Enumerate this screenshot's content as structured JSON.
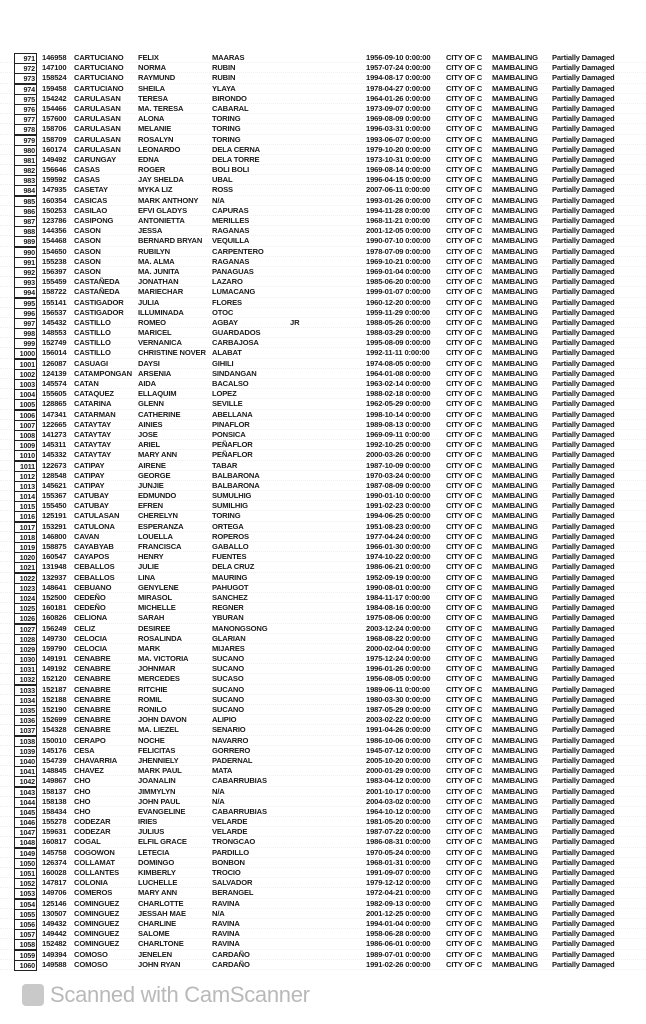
{
  "watermark": {
    "logo": "CS",
    "text": "Scanned with CamScanner"
  },
  "columns_constant_note": "",
  "rows": [
    [
      "971",
      "146958",
      "CARTUCIANO",
      "FELIX",
      "MAARAS",
      "",
      "1956-09-10 0:00:00",
      "CITY OF C",
      "MAMBALING",
      "Partially Damaged"
    ],
    [
      "972",
      "147100",
      "CARTUCIANO",
      "NORMA",
      "RUBIN",
      "",
      "1957-07-24 0:00:00",
      "CITY OF C",
      "MAMBALING",
      "Partially Damaged"
    ],
    [
      "973",
      "158524",
      "CARTUCIANO",
      "RAYMUND",
      "RUBIN",
      "",
      "1994-08-17 0:00:00",
      "CITY OF C",
      "MAMBALING",
      "Partially Damaged"
    ],
    [
      "974",
      "159458",
      "CARTUCIANO",
      "SHEILA",
      "YLAYA",
      "",
      "1978-04-27 0:00:00",
      "CITY OF C",
      "MAMBALING",
      "Partially Damaged"
    ],
    [
      "975",
      "154242",
      "CARULASAN",
      "TERESA",
      "BIRONDO",
      "",
      "1964-01-26 0:00:00",
      "CITY OF C",
      "MAMBALING",
      "Partially Damaged"
    ],
    [
      "976",
      "154466",
      "CARULASAN",
      "MA. TERESA",
      "CABARAL",
      "",
      "1973-09-07 0:00:00",
      "CITY OF C",
      "MAMBALING",
      "Partially Damaged"
    ],
    [
      "977",
      "157600",
      "CARULASAN",
      "ALONA",
      "TORING",
      "",
      "1969-08-09 0:00:00",
      "CITY OF C",
      "MAMBALING",
      "Partially Damaged"
    ],
    [
      "978",
      "158706",
      "CARULASAN",
      "MELANIE",
      "TORING",
      "",
      "1996-03-31 0:00:00",
      "CITY OF C",
      "MAMBALING",
      "Partially Damaged"
    ],
    [
      "979",
      "158709",
      "CARULASAN",
      "ROSALYN",
      "TORING",
      "",
      "1993-06-07 0:00:00",
      "CITY OF C",
      "MAMBALING",
      "Partially Damaged"
    ],
    [
      "980",
      "160174",
      "CARULASAN",
      "LEONARDO",
      "DELA CERNA",
      "",
      "1979-10-20 0:00:00",
      "CITY OF C",
      "MAMBALING",
      "Partially Damaged"
    ],
    [
      "981",
      "149492",
      "CARUNGAY",
      "EDNA",
      "DELA TORRE",
      "",
      "1973-10-31 0:00:00",
      "CITY OF C",
      "MAMBALING",
      "Partially Damaged"
    ],
    [
      "982",
      "156646",
      "CASAS",
      "ROGER",
      "BOLI BOLI",
      "",
      "1969-08-14 0:00:00",
      "CITY OF C",
      "MAMBALING",
      "Partially Damaged"
    ],
    [
      "983",
      "159592",
      "CASAS",
      "JAY SHELDA",
      "UBAL",
      "",
      "1996-04-15 0:00:00",
      "CITY OF C",
      "MAMBALING",
      "Partially Damaged"
    ],
    [
      "984",
      "147935",
      "CASETAY",
      "MYKA LIZ",
      "ROSS",
      "",
      "2007-06-11 0:00:00",
      "CITY OF C",
      "MAMBALING",
      "Partially Damaged"
    ],
    [
      "985",
      "160354",
      "CASICAS",
      "MARK ANTHONY",
      "N/A",
      "",
      "1993-01-26 0:00:00",
      "CITY OF C",
      "MAMBALING",
      "Partially Damaged"
    ],
    [
      "986",
      "150253",
      "CASILAO",
      "EFVI GLADYS",
      "CAPURAS",
      "",
      "1994-11-28 0:00:00",
      "CITY OF C",
      "MAMBALING",
      "Partially Damaged"
    ],
    [
      "987",
      "123786",
      "CASIPONG",
      "ANTONIETTA",
      "MERILLES",
      "",
      "1968-11-21 0:00:00",
      "CITY OF C",
      "MAMBALING",
      "Partially Damaged"
    ],
    [
      "988",
      "144356",
      "CASON",
      "JESSA",
      "RAGANAS",
      "",
      "2001-12-05 0:00:00",
      "CITY OF C",
      "MAMBALING",
      "Partially Damaged"
    ],
    [
      "989",
      "154468",
      "CASON",
      "BERNARD BRYAN",
      "VEQUILLA",
      "",
      "1990-07-10 0:00:00",
      "CITY OF C",
      "MAMBALING",
      "Partially Damaged"
    ],
    [
      "990",
      "154650",
      "CASON",
      "RUBILYN",
      "CARPENTERO",
      "",
      "1978-07-09 0:00:00",
      "CITY OF C",
      "MAMBALING",
      "Partially Damaged"
    ],
    [
      "991",
      "155238",
      "CASON",
      "MA. ALMA",
      "RAGANAS",
      "",
      "1969-10-21 0:00:00",
      "CITY OF C",
      "MAMBALING",
      "Partially Damaged"
    ],
    [
      "992",
      "156397",
      "CASON",
      "MA. JUNITA",
      "PANAGUAS",
      "",
      "1969-01-04 0:00:00",
      "CITY OF C",
      "MAMBALING",
      "Partially Damaged"
    ],
    [
      "993",
      "155459",
      "CASTAÑEDA",
      "JONATHAN",
      "LAZARO",
      "",
      "1985-06-20 0:00:00",
      "CITY OF C",
      "MAMBALING",
      "Partially Damaged"
    ],
    [
      "994",
      "158722",
      "CASTAÑEDA",
      "MARIECHAR",
      "LUMACANG",
      "",
      "1999-01-07 0:00:00",
      "CITY OF C",
      "MAMBALING",
      "Partially Damaged"
    ],
    [
      "995",
      "155141",
      "CASTIGADOR",
      "JULIA",
      "FLORES",
      "",
      "1960-12-20 0:00:00",
      "CITY OF C",
      "MAMBALING",
      "Partially Damaged"
    ],
    [
      "996",
      "156537",
      "CASTIGADOR",
      "ILLUMINADA",
      "OTOC",
      "",
      "1959-11-29 0:00:00",
      "CITY OF C",
      "MAMBALING",
      "Partially Damaged"
    ],
    [
      "997",
      "145432",
      "CASTILLO",
      "ROMEO",
      "AGBAY",
      "JR",
      "1988-05-26 0:00:00",
      "CITY OF C",
      "MAMBALING",
      "Partially Damaged"
    ],
    [
      "998",
      "148553",
      "CASTILLO",
      "MARICEL",
      "GUARDADOS",
      "",
      "1988-03-29 0:00:00",
      "CITY OF C",
      "MAMBALING",
      "Partially Damaged"
    ],
    [
      "999",
      "152749",
      "CASTILLO",
      "VERNANICA",
      "CARBAJOSA",
      "",
      "1995-08-09 0:00:00",
      "CITY OF C",
      "MAMBALING",
      "Partially Damaged"
    ],
    [
      "1000",
      "156014",
      "CASTILLO",
      "CHRISTINE NOVER",
      "ALABAT",
      "",
      "1992-11-11 0:00:00",
      "CITY OF C",
      "MAMBALING",
      "Partially Damaged"
    ],
    [
      "1001",
      "126087",
      "CASUAGI",
      "DAYSI",
      "GIHILI",
      "",
      "1974-08-05 0:00:00",
      "CITY OF C",
      "MAMBALING",
      "Partially Damaged"
    ],
    [
      "1002",
      "124139",
      "CATAMPONGAN",
      "ARSENIA",
      "SINDANGAN",
      "",
      "1964-01-08 0:00:00",
      "CITY OF C",
      "MAMBALING",
      "Partially Damaged"
    ],
    [
      "1003",
      "145574",
      "CATAN",
      "AIDA",
      "BACALSO",
      "",
      "1963-02-14 0:00:00",
      "CITY OF C",
      "MAMBALING",
      "Partially Damaged"
    ],
    [
      "1004",
      "155605",
      "CATAQUEZ",
      "ELLAQUIM",
      "LOPEZ",
      "",
      "1988-02-18 0:00:00",
      "CITY OF C",
      "MAMBALING",
      "Partially Damaged"
    ],
    [
      "1005",
      "128865",
      "CATARINA",
      "GLENN",
      "SEVILLE",
      "",
      "1962-05-29 0:00:00",
      "CITY OF C",
      "MAMBALING",
      "Partially Damaged"
    ],
    [
      "1006",
      "147341",
      "CATARMAN",
      "CATHERINE",
      "ABELLANA",
      "",
      "1998-10-14 0:00:00",
      "CITY OF C",
      "MAMBALING",
      "Partially Damaged"
    ],
    [
      "1007",
      "122665",
      "CATAYTAY",
      "AINIES",
      "PINAFLOR",
      "",
      "1989-08-13 0:00:00",
      "CITY OF C",
      "MAMBALING",
      "Partially Damaged"
    ],
    [
      "1008",
      "141273",
      "CATAYTAY",
      "JOSE",
      "PONSICA",
      "",
      "1969-09-11 0:00:00",
      "CITY OF C",
      "MAMBALING",
      "Partially Damaged"
    ],
    [
      "1009",
      "145311",
      "CATAYTAY",
      "ARIEL",
      "PEÑAFLOR",
      "",
      "1992-10-25 0:00:00",
      "CITY OF C",
      "MAMBALING",
      "Partially Damaged"
    ],
    [
      "1010",
      "145332",
      "CATAYTAY",
      "MARY ANN",
      "PEÑAFLOR",
      "",
      "2000-03-26 0:00:00",
      "CITY OF C",
      "MAMBALING",
      "Partially Damaged"
    ],
    [
      "1011",
      "122673",
      "CATIPAY",
      "AIRENE",
      "TABAR",
      "",
      "1987-10-09 0:00:00",
      "CITY OF C",
      "MAMBALING",
      "Partially Damaged"
    ],
    [
      "1012",
      "128548",
      "CATIPAY",
      "GEORGE",
      "BALBARONA",
      "",
      "1970-03-24 0:00:00",
      "CITY OF C",
      "MAMBALING",
      "Partially Damaged"
    ],
    [
      "1013",
      "145621",
      "CATIPAY",
      "JUNJIE",
      "BALBARONA",
      "",
      "1987-08-09 0:00:00",
      "CITY OF C",
      "MAMBALING",
      "Partially Damaged"
    ],
    [
      "1014",
      "155367",
      "CATUBAY",
      "EDMUNDO",
      "SUMULHIG",
      "",
      "1990-01-10 0:00:00",
      "CITY OF C",
      "MAMBALING",
      "Partially Damaged"
    ],
    [
      "1015",
      "155450",
      "CATUBAY",
      "EFREN",
      "SUMILHIG",
      "",
      "1991-02-23 0:00:00",
      "CITY OF C",
      "MAMBALING",
      "Partially Damaged"
    ],
    [
      "1016",
      "125191",
      "CATULASAN",
      "CHERELYN",
      "TORING",
      "",
      "1994-06-25 0:00:00",
      "CITY OF C",
      "MAMBALING",
      "Partially Damaged"
    ],
    [
      "1017",
      "153291",
      "CATULONA",
      "ESPERANZA",
      "ORTEGA",
      "",
      "1951-08-23 0:00:00",
      "CITY OF C",
      "MAMBALING",
      "Partially Damaged"
    ],
    [
      "1018",
      "146800",
      "CAVAN",
      "LOUELLA",
      "ROPEROS",
      "",
      "1977-04-24 0:00:00",
      "CITY OF C",
      "MAMBALING",
      "Partially Damaged"
    ],
    [
      "1019",
      "158875",
      "CAYABYAB",
      "FRANCISCA",
      "GABALLO",
      "",
      "1966-01-30 0:00:00",
      "CITY OF C",
      "MAMBALING",
      "Partially Damaged"
    ],
    [
      "1020",
      "160547",
      "CAYAPOS",
      "HENRY",
      "FUENTES",
      "",
      "1974-10-22 0:00:00",
      "CITY OF C",
      "MAMBALING",
      "Partially Damaged"
    ],
    [
      "1021",
      "131948",
      "CEBALLOS",
      "JULIE",
      "DELA CRUZ",
      "",
      "1986-06-21 0:00:00",
      "CITY OF C",
      "MAMBALING",
      "Partially Damaged"
    ],
    [
      "1022",
      "132937",
      "CEBALLOS",
      "LINA",
      "MAURING",
      "",
      "1952-09-19 0:00:00",
      "CITY OF C",
      "MAMBALING",
      "Partially Damaged"
    ],
    [
      "1023",
      "148641",
      "CEBUANO",
      "GENYLENE",
      "PAHUGOT",
      "",
      "1990-08-01 0:00:00",
      "CITY OF C",
      "MAMBALING",
      "Partially Damaged"
    ],
    [
      "1024",
      "152500",
      "CEDEÑO",
      "MIRASOL",
      "SANCHEZ",
      "",
      "1984-11-17 0:00:00",
      "CITY OF C",
      "MAMBALING",
      "Partially Damaged"
    ],
    [
      "1025",
      "160181",
      "CEDEÑO",
      "MICHELLE",
      "REGNER",
      "",
      "1984-08-16 0:00:00",
      "CITY OF C",
      "MAMBALING",
      "Partially Damaged"
    ],
    [
      "1026",
      "160826",
      "CELIONA",
      "SARAH",
      "YBURAN",
      "",
      "1975-08-06 0:00:00",
      "CITY OF C",
      "MAMBALING",
      "Partially Damaged"
    ],
    [
      "1027",
      "156249",
      "CELIZ",
      "DESIREE",
      "MANONGSONG",
      "",
      "2003-12-24 0:00:00",
      "CITY OF C",
      "MAMBALING",
      "Partially Damaged"
    ],
    [
      "1028",
      "149730",
      "CELOCIA",
      "ROSALINDA",
      "GLARIAN",
      "",
      "1968-08-22 0:00:00",
      "CITY OF C",
      "MAMBALING",
      "Partially Damaged"
    ],
    [
      "1029",
      "159790",
      "CELOCIA",
      "MARK",
      "MIJARES",
      "",
      "2000-02-04 0:00:00",
      "CITY OF C",
      "MAMBALING",
      "Partially Damaged"
    ],
    [
      "1030",
      "149191",
      "CENABRE",
      "MA. VICTORIA",
      "SUCANO",
      "",
      "1975-12-24 0:00:00",
      "CITY OF C",
      "MAMBALING",
      "Partially Damaged"
    ],
    [
      "1031",
      "149192",
      "CENABRE",
      "JOHNMAR",
      "SUCANO",
      "",
      "1996-01-26 0:00:00",
      "CITY OF C",
      "MAMBALING",
      "Partially Damaged"
    ],
    [
      "1032",
      "152120",
      "CENABRE",
      "MERCEDES",
      "SUCASO",
      "",
      "1956-08-05 0:00:00",
      "CITY OF C",
      "MAMBALING",
      "Partially Damaged"
    ],
    [
      "1033",
      "152187",
      "CENABRE",
      "RITCHIE",
      "SUCANO",
      "",
      "1989-06-11 0:00:00",
      "CITY OF C",
      "MAMBALING",
      "Partially Damaged"
    ],
    [
      "1034",
      "152188",
      "CENABRE",
      "ROMIL",
      "SUCANO",
      "",
      "1980-03-30 0:00:00",
      "CITY OF C",
      "MAMBALING",
      "Partially Damaged"
    ],
    [
      "1035",
      "152190",
      "CENABRE",
      "RONILO",
      "SUCANO",
      "",
      "1987-05-29 0:00:00",
      "CITY OF C",
      "MAMBALING",
      "Partially Damaged"
    ],
    [
      "1036",
      "152699",
      "CENABRE",
      "JOHN DAVON",
      "ALIPIO",
      "",
      "2003-02-22 0:00:00",
      "CITY OF C",
      "MAMBALING",
      "Partially Damaged"
    ],
    [
      "1037",
      "154328",
      "CENABRE",
      "MA. LIEZEL",
      "SENARIO",
      "",
      "1991-04-26 0:00:00",
      "CITY OF C",
      "MAMBALING",
      "Partially Damaged"
    ],
    [
      "1038",
      "150010",
      "CERAPO",
      "NOCHE",
      "NAVARRO",
      "",
      "1986-10-06 0:00:00",
      "CITY OF C",
      "MAMBALING",
      "Partially Damaged"
    ],
    [
      "1039",
      "145176",
      "CESA",
      "FELICITAS",
      "GORRERO",
      "",
      "1945-07-12 0:00:00",
      "CITY OF C",
      "MAMBALING",
      "Partially Damaged"
    ],
    [
      "1040",
      "154739",
      "CHAVARRIA",
      "JHENNIELY",
      "PADERNAL",
      "",
      "2005-10-20 0:00:00",
      "CITY OF C",
      "MAMBALING",
      "Partially Damaged"
    ],
    [
      "1041",
      "148845",
      "CHAVEZ",
      "MARK PAUL",
      "MATA",
      "",
      "2000-01-29 0:00:00",
      "CITY OF C",
      "MAMBALING",
      "Partially Damaged"
    ],
    [
      "1042",
      "149867",
      "CHO",
      "JOANALIN",
      "CABARRUBIAS",
      "",
      "1983-04-12 0:00:00",
      "CITY OF C",
      "MAMBALING",
      "Partially Damaged"
    ],
    [
      "1043",
      "158137",
      "CHO",
      "JIMMYLYN",
      "N/A",
      "",
      "2001-10-17 0:00:00",
      "CITY OF C",
      "MAMBALING",
      "Partially Damaged"
    ],
    [
      "1044",
      "158138",
      "CHO",
      "JOHN PAUL",
      "N/A",
      "",
      "2004-03-02 0:00:00",
      "CITY OF C",
      "MAMBALING",
      "Partially Damaged"
    ],
    [
      "1045",
      "158434",
      "CHO",
      "EVANGELINE",
      "CABARRUBIAS",
      "",
      "1964-10-12 0:00:00",
      "CITY OF C",
      "MAMBALING",
      "Partially Damaged"
    ],
    [
      "1046",
      "155278",
      "CODEZAR",
      "IRIES",
      "VELARDE",
      "",
      "1981-05-20 0:00:00",
      "CITY OF C",
      "MAMBALING",
      "Partially Damaged"
    ],
    [
      "1047",
      "159631",
      "CODEZAR",
      "JULIUS",
      "VELARDE",
      "",
      "1987-07-22 0:00:00",
      "CITY OF C",
      "MAMBALING",
      "Partially Damaged"
    ],
    [
      "1048",
      "160817",
      "COGAL",
      "ELFIL GRACE",
      "TRONGCAO",
      "",
      "1986-08-31 0:00:00",
      "CITY OF C",
      "MAMBALING",
      "Partially Damaged"
    ],
    [
      "1049",
      "145758",
      "COGOWON",
      "LETECIA",
      "PARDILLO",
      "",
      "1970-05-24 0:00:00",
      "CITY OF C",
      "MAMBALING",
      "Partially Damaged"
    ],
    [
      "1050",
      "126374",
      "COLLAMAT",
      "DOMINGO",
      "BONBON",
      "",
      "1968-01-31 0:00:00",
      "CITY OF C",
      "MAMBALING",
      "Partially Damaged"
    ],
    [
      "1051",
      "160028",
      "COLLANTES",
      "KIMBERLY",
      "TROCIO",
      "",
      "1991-09-07 0:00:00",
      "CITY OF C",
      "MAMBALING",
      "Partially Damaged"
    ],
    [
      "1052",
      "147817",
      "COLONIA",
      "LUCHELLE",
      "SALVADOR",
      "",
      "1979-12-12 0:00:00",
      "CITY OF C",
      "MAMBALING",
      "Partially Damaged"
    ],
    [
      "1053",
      "149706",
      "COMEROS",
      "MARY ANN",
      "BERANGEL",
      "",
      "1972-04-21 0:00:00",
      "CITY OF C",
      "MAMBALING",
      "Partially Damaged"
    ],
    [
      "1054",
      "125146",
      "COMINGUEZ",
      "CHARLOTTE",
      "RAVINA",
      "",
      "1982-09-13 0:00:00",
      "CITY OF C",
      "MAMBALING",
      "Partially Damaged"
    ],
    [
      "1055",
      "130507",
      "COMINGUEZ",
      "JESSAH MAE",
      "N/A",
      "",
      "2001-12-25 0:00:00",
      "CITY OF C",
      "MAMBALING",
      "Partially Damaged"
    ],
    [
      "1056",
      "149432",
      "COMINGUEZ",
      "CHARLINE",
      "RAVINA",
      "",
      "1994-01-04 0:00:00",
      "CITY OF C",
      "MAMBALING",
      "Partially Damaged"
    ],
    [
      "1057",
      "149442",
      "COMINGUEZ",
      "SALOME",
      "RAVINA",
      "",
      "1958-06-28 0:00:00",
      "CITY OF C",
      "MAMBALING",
      "Partially Damaged"
    ],
    [
      "1058",
      "152482",
      "COMINGUEZ",
      "CHARLTONE",
      "RAVINA",
      "",
      "1986-06-01 0:00:00",
      "CITY OF C",
      "MAMBALING",
      "Partially Damaged"
    ],
    [
      "1059",
      "149394",
      "COMOSO",
      "JENELEN",
      "CARDAÑO",
      "",
      "1989-07-01 0:00:00",
      "CITY OF C",
      "MAMBALING",
      "Partially Damaged"
    ],
    [
      "1060",
      "149588",
      "COMOSO",
      "JOHN RYAN",
      "CARDAÑO",
      "",
      "1991-02-26 0:00:00",
      "CITY OF C",
      "MAMBALING",
      "Partially Damaged"
    ]
  ]
}
